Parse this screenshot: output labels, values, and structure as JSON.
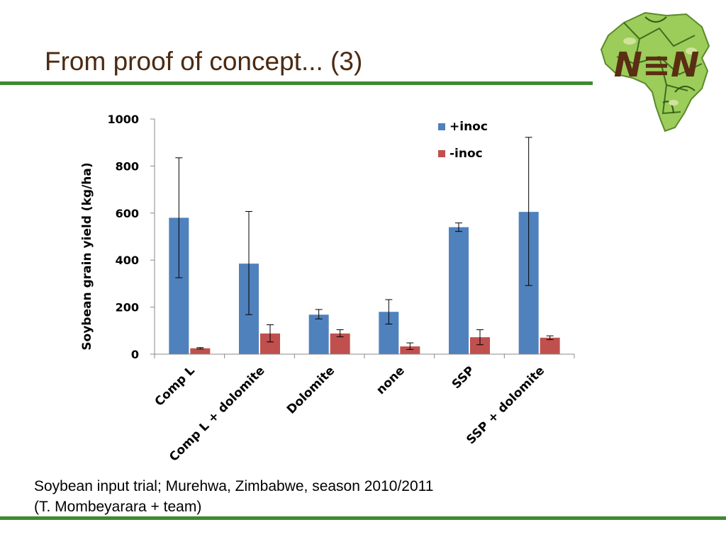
{
  "slide": {
    "title": "From proof of concept... (3)",
    "caption_line1": "Soybean input trial; Murehwa, Zimbabwe, season 2010/2011",
    "caption_line2": "(T. Mombeyarara + team)",
    "accent_color": "#3f8a2e",
    "title_color": "#4b2a12"
  },
  "logo": {
    "text": "N≡N",
    "icon": "africa-map-leaves-icon"
  },
  "chart_data": {
    "type": "bar",
    "title": "",
    "xlabel": "",
    "ylabel": "Soybean grain yield (kg/ha)",
    "ylim": [
      0,
      1000
    ],
    "yticks": [
      0,
      200,
      400,
      600,
      800,
      1000
    ],
    "grid": false,
    "legend_position": "top-right",
    "categories": [
      "Comp L",
      "Comp L + dolomite",
      "Dolomite",
      "none",
      "SSP",
      "SSP + dolomite"
    ],
    "series": [
      {
        "name": "+inoc",
        "color": "#4f81bd",
        "values": [
          580,
          385,
          168,
          180,
          540,
          605
        ],
        "error_low": [
          325,
          168,
          150,
          128,
          522,
          292
        ],
        "error_high": [
          835,
          607,
          190,
          232,
          558,
          922
        ]
      },
      {
        "name": "-inoc",
        "color": "#c0504d",
        "values": [
          25,
          88,
          88,
          33,
          72,
          70
        ],
        "error_low": [
          22,
          52,
          74,
          20,
          40,
          62
        ],
        "error_high": [
          28,
          125,
          104,
          48,
          104,
          78
        ]
      }
    ]
  }
}
